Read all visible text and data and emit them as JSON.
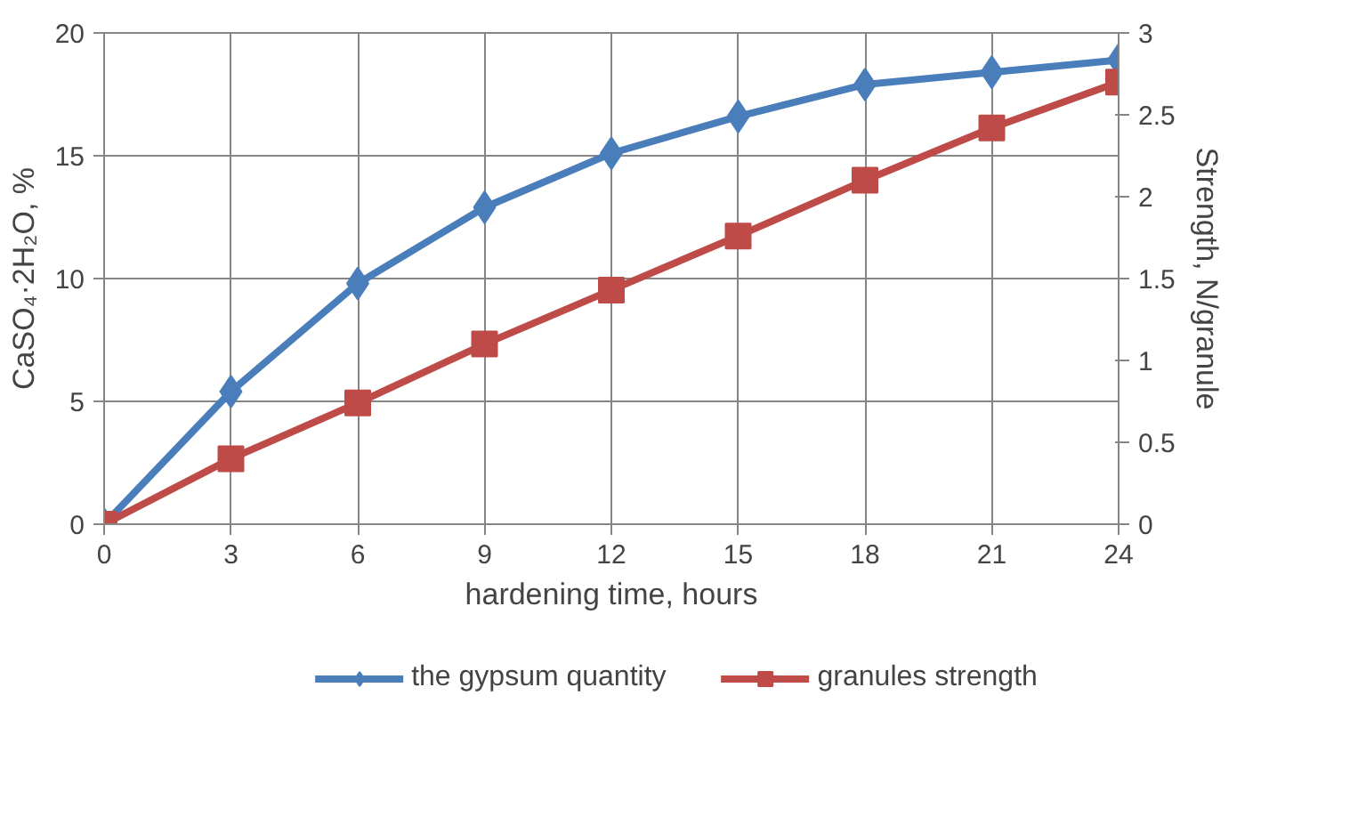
{
  "chart_data": {
    "type": "line",
    "xlabel": "hardening time, hours",
    "ylabel": "CaSO₄·2H₂O, %",
    "y2label": "Strength, N/granule",
    "x": [
      0,
      3,
      6,
      9,
      12,
      15,
      18,
      21,
      24
    ],
    "xlim": [
      0,
      24
    ],
    "xticks": [
      0,
      3,
      6,
      9,
      12,
      15,
      18,
      21,
      24
    ],
    "ylim": [
      0,
      20
    ],
    "yticks": [
      0,
      5,
      10,
      15,
      20
    ],
    "y2lim": [
      0,
      3
    ],
    "y2ticks": [
      0,
      {
        "value": 0.5,
        "label": "0.5"
      },
      1,
      {
        "value": 1.5,
        "label": "1.5"
      },
      2,
      {
        "value": 2.5,
        "label": "2.5"
      },
      3
    ],
    "grid": true,
    "legend": "bottom",
    "line_style": "solid",
    "series": [
      {
        "name": "the gypsum quantity",
        "color": "#4a7ebb",
        "marker": "diamond",
        "values": [
          0,
          5.4,
          9.8,
          12.9,
          15.1,
          16.6,
          17.9,
          18.4,
          18.9
        ]
      },
      {
        "name": "granules strength",
        "color": "#be4b48",
        "marker": "square",
        "axis": "y2",
        "values": [
          0,
          0.4,
          0.74,
          1.1,
          1.43,
          1.76,
          2.1,
          2.42,
          2.7
        ]
      }
    ]
  }
}
